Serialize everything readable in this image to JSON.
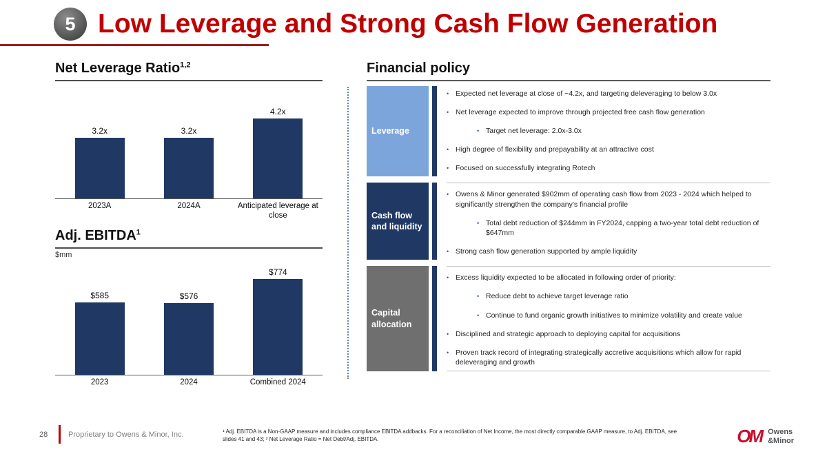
{
  "slide": {
    "badge": "5",
    "title": "Low Leverage and Strong Cash Flow Generation"
  },
  "colors": {
    "title_red": "#C00000",
    "navy": "#1F3864",
    "light_blue": "#7CA6DB",
    "gray": "#6F6F6F",
    "logo_red": "#C8102E"
  },
  "left": {
    "chart1_heading": "Net Leverage Ratio",
    "chart1_sup": "1,2",
    "chart2_heading": "Adj. EBITDA",
    "chart2_sup": "1",
    "chart2_unit": "$mm"
  },
  "chart_data": [
    {
      "type": "bar",
      "title": "Net Leverage Ratio",
      "categories": [
        "2023A",
        "2024A",
        "Anticipated leverage at close"
      ],
      "values": [
        3.2,
        3.2,
        4.2
      ],
      "value_labels": [
        "3.2x",
        "3.2x",
        "4.2x"
      ],
      "ylim": [
        0,
        5
      ],
      "bar_color": "#1F3864",
      "grid": false,
      "legend": false
    },
    {
      "type": "bar",
      "title": "Adj. EBITDA",
      "ylabel": "$mm",
      "categories": [
        "2023",
        "2024",
        "Combined 2024"
      ],
      "values": [
        585,
        576,
        774
      ],
      "value_labels": [
        "$585",
        "$576",
        "$774"
      ],
      "ylim": [
        0,
        800
      ],
      "bar_color": "#1F3864",
      "grid": false,
      "legend": false
    }
  ],
  "right": {
    "heading": "Financial policy",
    "sections": [
      {
        "label": "Leverage",
        "color": "#7CA6DB",
        "accent_color": "#1F3864",
        "bullets": [
          {
            "level": 1,
            "text": "Expected net leverage at close of ~4.2x, and targeting deleveraging to below 3.0x"
          },
          {
            "level": 1,
            "text": "Net leverage expected to improve through projected free cash flow generation"
          },
          {
            "level": 2,
            "text": "Target net leverage: 2.0x-3.0x"
          },
          {
            "level": 1,
            "text": "High degree of flexibility and prepayability at an attractive cost"
          },
          {
            "level": 1,
            "text": "Focused on successfully integrating Rotech"
          }
        ]
      },
      {
        "label": "Cash flow and liquidity",
        "color": "#1F3864",
        "accent_color": "#1F3864",
        "bullets": [
          {
            "level": 1,
            "text": "Owens & Minor generated $902mm of operating cash flow from 2023 - 2024 which helped to significantly strengthen the company's financial profile"
          },
          {
            "level": 2,
            "text": "Total debt reduction of $244mm in FY2024, capping a two-year total debt reduction of $647mm"
          },
          {
            "level": 1,
            "text": "Strong cash flow generation supported by ample liquidity"
          }
        ]
      },
      {
        "label": "Capital allocation",
        "color": "#6F6F6F",
        "accent_color": "#1F3864",
        "bullets": [
          {
            "level": 1,
            "text": "Excess liquidity expected to be allocated in following order of priority:"
          },
          {
            "level": 2,
            "text": "Reduce debt to achieve target leverage ratio"
          },
          {
            "level": 2,
            "text": "Continue to fund organic growth initiatives to minimize volatility and create value"
          },
          {
            "level": 1,
            "text": "Disciplined and strategic approach to deploying capital for acquisitions"
          },
          {
            "level": 1,
            "text": "Proven track record of integrating strategically accretive acquisitions which allow for rapid deleveraging and growth"
          }
        ]
      }
    ]
  },
  "footer": {
    "page_number": "28",
    "proprietary": "Proprietary to Owens & Minor, Inc.",
    "footnote": "¹ Adj. EBITDA is a Non-GAAP measure and includes compliance EBITDA addbacks. For a reconciliation of Net Income, the most directly comparable GAAP measure, to Adj. EBITDA, see slides 41 and 43; ² Net Leverage Ratio = Net Debt/Adj. EBITDA.",
    "logo_mark": "OM",
    "logo_line1": "Owens",
    "logo_line2": "&Minor"
  }
}
